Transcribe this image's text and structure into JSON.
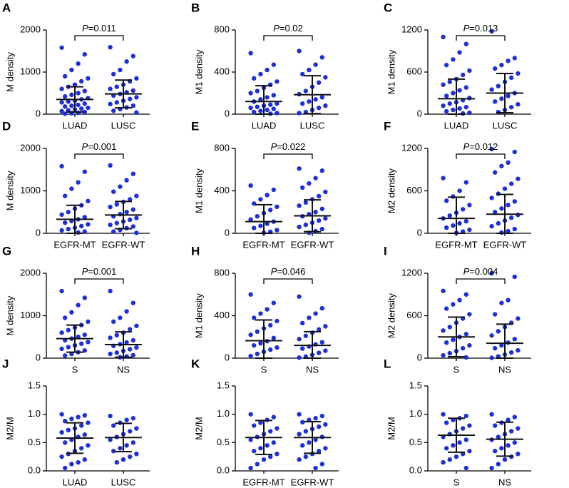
{
  "chart_data": [
    {
      "type": "dot",
      "label": "A",
      "ylabel": "M density",
      "color": "#1f2fd8",
      "categories": [
        "LUAD",
        "LUSC"
      ],
      "ylim": [
        0,
        2000
      ],
      "yticks": [
        0,
        1000,
        2000
      ],
      "annotation": {
        "italic": "P",
        "text": "=0.011"
      },
      "groups": [
        {
          "mean": 350,
          "sd": 300,
          "values": [
            1580,
            1420,
            1200,
            1050,
            900,
            850,
            780,
            700,
            650,
            600,
            550,
            500,
            460,
            420,
            380,
            350,
            320,
            300,
            280,
            250,
            220,
            200,
            180,
            150,
            130,
            110,
            90,
            70,
            50,
            30,
            20,
            10
          ]
        },
        {
          "mean": 480,
          "sd": 330,
          "values": [
            1590,
            1380,
            1250,
            1050,
            950,
            850,
            780,
            700,
            650,
            600,
            560,
            520,
            480,
            440,
            400,
            360,
            320,
            280,
            240,
            200,
            160,
            120,
            80,
            40
          ]
        }
      ]
    },
    {
      "type": "dot",
      "label": "B",
      "ylabel": "M1 density",
      "color": "#1f2fd8",
      "categories": [
        "LUAD",
        "LUSC"
      ],
      "ylim": [
        0,
        800
      ],
      "yticks": [
        0,
        400,
        800
      ],
      "annotation": {
        "italic": "P",
        "text": "=0.02"
      },
      "groups": [
        {
          "mean": 120,
          "sd": 150,
          "values": [
            580,
            470,
            420,
            380,
            340,
            310,
            280,
            250,
            220,
            200,
            180,
            160,
            140,
            120,
            100,
            90,
            80,
            70,
            60,
            50,
            40,
            30,
            20,
            10,
            5
          ]
        },
        {
          "mean": 185,
          "sd": 180,
          "values": [
            600,
            540,
            470,
            420,
            380,
            350,
            300,
            260,
            220,
            190,
            160,
            140,
            120,
            100,
            80,
            60,
            40,
            20,
            10
          ]
        }
      ]
    },
    {
      "type": "dot",
      "label": "C",
      "ylabel": "M1 density",
      "color": "#1f2fd8",
      "categories": [
        "LUAD",
        "LUSC"
      ],
      "ylim": [
        0,
        1200
      ],
      "yticks": [
        0,
        600,
        1200
      ],
      "annotation": {
        "italic": "P",
        "text": "=0.013"
      },
      "groups": [
        {
          "mean": 220,
          "sd": 280,
          "values": [
            1100,
            1000,
            880,
            780,
            700,
            620,
            560,
            500,
            460,
            420,
            380,
            340,
            300,
            260,
            230,
            200,
            170,
            150,
            120,
            100,
            80,
            60,
            40,
            20,
            10
          ]
        },
        {
          "mean": 300,
          "sd": 280,
          "values": [
            1180,
            800,
            760,
            700,
            650,
            580,
            520,
            460,
            400,
            350,
            300,
            260,
            220,
            180,
            140,
            100,
            60,
            30
          ]
        }
      ]
    },
    {
      "type": "dot",
      "label": "D",
      "ylabel": "M density",
      "color": "#1f2fd8",
      "categories": [
        "EGFR-MT",
        "EGFR-WT"
      ],
      "ylim": [
        0,
        2000
      ],
      "yticks": [
        0,
        1000,
        2000
      ],
      "annotation": {
        "italic": "P",
        "text": "=0.001"
      },
      "groups": [
        {
          "mean": 330,
          "sd": 330,
          "values": [
            1580,
            1450,
            1200,
            1050,
            880,
            760,
            660,
            580,
            500,
            440,
            380,
            330,
            290,
            250,
            210,
            170,
            130,
            100,
            70,
            40,
            20
          ]
        },
        {
          "mean": 430,
          "sd": 320,
          "values": [
            1600,
            1400,
            1250,
            1100,
            980,
            880,
            800,
            740,
            680,
            620,
            560,
            500,
            450,
            400,
            360,
            320,
            280,
            240,
            200,
            160,
            120,
            80,
            40,
            10
          ]
        }
      ]
    },
    {
      "type": "dot",
      "label": "E",
      "ylabel": "M1 density",
      "color": "#1f2fd8",
      "categories": [
        "EGFR-MT",
        "EGFR-WT"
      ],
      "ylim": [
        0,
        800
      ],
      "yticks": [
        0,
        400,
        800
      ],
      "annotation": {
        "italic": "P",
        "text": "=0.022"
      },
      "groups": [
        {
          "mean": 110,
          "sd": 160,
          "values": [
            450,
            410,
            360,
            320,
            280,
            250,
            220,
            190,
            160,
            130,
            110,
            90,
            70,
            50,
            30,
            15,
            5
          ]
        },
        {
          "mean": 165,
          "sd": 150,
          "values": [
            610,
            590,
            520,
            470,
            430,
            390,
            350,
            320,
            290,
            260,
            230,
            200,
            180,
            160,
            140,
            120,
            100,
            80,
            60,
            40,
            20,
            5
          ]
        }
      ]
    },
    {
      "type": "dot",
      "label": "F",
      "ylabel": "M2 density",
      "color": "#1f2fd8",
      "categories": [
        "EGFR-MT",
        "EGFR-WT"
      ],
      "ylim": [
        0,
        1200
      ],
      "yticks": [
        0,
        600,
        1200
      ],
      "annotation": {
        "italic": "P",
        "text": "=0.012"
      },
      "groups": [
        {
          "mean": 210,
          "sd": 300,
          "values": [
            780,
            720,
            600,
            520,
            460,
            400,
            340,
            290,
            250,
            210,
            170,
            140,
            110,
            80,
            50,
            25,
            5
          ]
        },
        {
          "mean": 270,
          "sd": 280,
          "values": [
            1190,
            1150,
            1000,
            950,
            860,
            770,
            700,
            630,
            560,
            500,
            450,
            400,
            350,
            300,
            260,
            220,
            180,
            140,
            100,
            60,
            30,
            10
          ]
        }
      ]
    },
    {
      "type": "dot",
      "label": "G",
      "ylabel": "M density",
      "color": "#1f2fd8",
      "categories": [
        "S",
        "NS"
      ],
      "ylim": [
        0,
        2000
      ],
      "yticks": [
        0,
        1000,
        2000
      ],
      "annotation": {
        "italic": "P",
        "text": "=0.001"
      },
      "groups": [
        {
          "mean": 460,
          "sd": 320,
          "values": [
            1580,
            1420,
            1250,
            1080,
            950,
            860,
            780,
            720,
            660,
            600,
            550,
            500,
            460,
            420,
            380,
            340,
            300,
            260,
            220,
            180,
            140,
            100,
            60
          ]
        },
        {
          "mean": 320,
          "sd": 300,
          "values": [
            1580,
            1300,
            1100,
            950,
            860,
            760,
            680,
            600,
            540,
            480,
            420,
            370,
            330,
            290,
            250,
            210,
            170,
            130,
            100,
            70,
            40,
            20
          ]
        }
      ]
    },
    {
      "type": "dot",
      "label": "H",
      "ylabel": "M1 density",
      "color": "#1f2fd8",
      "categories": [
        "S",
        "NS"
      ],
      "ylim": [
        0,
        800
      ],
      "yticks": [
        0,
        400,
        800
      ],
      "annotation": {
        "italic": "P",
        "text": "=0.046"
      },
      "groups": [
        {
          "mean": 165,
          "sd": 195,
          "values": [
            600,
            520,
            460,
            420,
            380,
            350,
            310,
            280,
            250,
            220,
            190,
            160,
            140,
            120,
            100,
            80,
            60,
            40,
            20
          ]
        },
        {
          "mean": 120,
          "sd": 130,
          "values": [
            580,
            470,
            420,
            380,
            330,
            300,
            270,
            240,
            210,
            180,
            150,
            130,
            110,
            90,
            70,
            50,
            30,
            15,
            5
          ]
        }
      ]
    },
    {
      "type": "dot",
      "label": "I",
      "ylabel": "M2 density",
      "color": "#1f2fd8",
      "categories": [
        "S",
        "NS"
      ],
      "ylim": [
        0,
        1200
      ],
      "yticks": [
        0,
        600,
        1200
      ],
      "annotation": {
        "italic": "P",
        "text": "=0.004"
      },
      "groups": [
        {
          "mean": 300,
          "sd": 280,
          "values": [
            950,
            900,
            820,
            760,
            700,
            620,
            560,
            500,
            440,
            390,
            340,
            300,
            260,
            220,
            180,
            140,
            100,
            70,
            40,
            10
          ]
        },
        {
          "mean": 210,
          "sd": 270,
          "values": [
            1200,
            1150,
            820,
            780,
            620,
            560,
            500,
            440,
            380,
            320,
            270,
            220,
            180,
            140,
            110,
            80,
            50,
            25,
            5
          ]
        }
      ]
    },
    {
      "type": "dot",
      "label": "J",
      "ylabel": "M2/M",
      "color": "#1f2fd8",
      "categories": [
        "LUAD",
        "LUSC"
      ],
      "ylim": [
        0,
        1.5
      ],
      "yticks": [
        {
          "value": 0,
          "label": "0.0"
        },
        0.5,
        {
          "value": 1,
          "label": "1.0"
        },
        1.5
      ],
      "groups": [
        {
          "mean": 0.58,
          "sd": 0.27,
          "values": [
            1.0,
            0.98,
            0.95,
            0.92,
            0.88,
            0.85,
            0.8,
            0.75,
            0.72,
            0.68,
            0.64,
            0.6,
            0.55,
            0.5,
            0.45,
            0.4,
            0.35,
            0.3,
            0.25,
            0.2,
            0.15,
            0.12,
            0.05
          ]
        },
        {
          "mean": 0.59,
          "sd": 0.25,
          "values": [
            0.97,
            0.93,
            0.9,
            0.85,
            0.8,
            0.75,
            0.7,
            0.65,
            0.6,
            0.55,
            0.5,
            0.45,
            0.4,
            0.35,
            0.3,
            0.25,
            0.2,
            0.15
          ]
        }
      ]
    },
    {
      "type": "dot",
      "label": "K",
      "ylabel": "M2/M",
      "color": "#1f2fd8",
      "categories": [
        "EGFR-MT",
        "EGFR-WT"
      ],
      "ylim": [
        0,
        1.5
      ],
      "yticks": [
        {
          "value": 0,
          "label": "0.0"
        },
        0.5,
        {
          "value": 1,
          "label": "1.0"
        },
        1.5
      ],
      "groups": [
        {
          "mean": 0.59,
          "sd": 0.3,
          "values": [
            1.0,
            0.95,
            0.9,
            0.85,
            0.8,
            0.75,
            0.7,
            0.65,
            0.6,
            0.55,
            0.5,
            0.45,
            0.4,
            0.35,
            0.3,
            0.25,
            0.2,
            0.12,
            0.05
          ]
        },
        {
          "mean": 0.59,
          "sd": 0.28,
          "values": [
            1.0,
            0.97,
            0.93,
            0.9,
            0.86,
            0.82,
            0.78,
            0.74,
            0.7,
            0.65,
            0.6,
            0.55,
            0.5,
            0.45,
            0.4,
            0.35,
            0.3,
            0.25,
            0.2,
            0.12,
            0.05
          ]
        }
      ]
    },
    {
      "type": "dot",
      "label": "L",
      "ylabel": "M2/M",
      "color": "#1f2fd8",
      "categories": [
        "S",
        "NS"
      ],
      "ylim": [
        0,
        1.5
      ],
      "yticks": [
        {
          "value": 0,
          "label": "0.0"
        },
        0.5,
        {
          "value": 1,
          "label": "1.0"
        },
        1.5
      ],
      "groups": [
        {
          "mean": 0.63,
          "sd": 0.3,
          "values": [
            1.0,
            0.97,
            0.93,
            0.9,
            0.85,
            0.8,
            0.75,
            0.7,
            0.65,
            0.6,
            0.55,
            0.5,
            0.45,
            0.4,
            0.35,
            0.3,
            0.25,
            0.2,
            0.15,
            0.05
          ]
        },
        {
          "mean": 0.56,
          "sd": 0.3,
          "values": [
            1.0,
            0.95,
            0.9,
            0.85,
            0.8,
            0.75,
            0.7,
            0.65,
            0.6,
            0.55,
            0.5,
            0.45,
            0.4,
            0.35,
            0.3,
            0.25,
            0.2,
            0.12,
            0.05
          ]
        }
      ]
    }
  ]
}
